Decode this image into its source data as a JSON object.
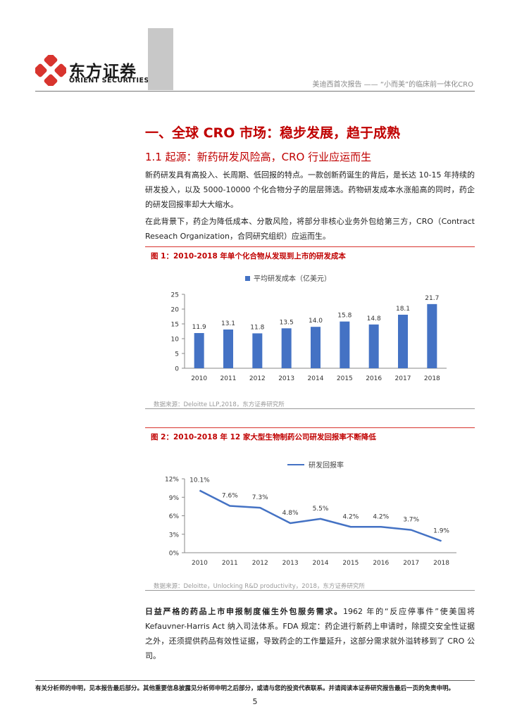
{
  "header": {
    "logo_cn": "东方证券",
    "logo_en": "ORIENT SECURITIES",
    "subtitle": "美迪西首次报告 —— “小而美”的临床前一体化CRO"
  },
  "section": {
    "title": "一、全球 CRO 市场：稳步发展，趋于成熟",
    "subtitle": "1.1 起源：新药研发风险高，CRO 行业应运而生"
  },
  "paragraphs": {
    "p1": "新药研发具有高投入、长周期、低回报的特点。一款创新药诞生的背后，是长达 10-15 年持续的研发投入，以及 5000-10000 个化合物分子的层层筛选。药物研发成本水涨船高的同时，药企的研发回报率却大大缩水。",
    "p2": "在此背景下，药企为降低成本、分散风险，将部分非核心业务外包给第三方，CRO（Contract Reseach Organization，合同研究组织）应运而生。",
    "p3_bold": "日益严格的药品上市申报制度催生外包服务需求。",
    "p3_rest": "1962 年的“反应停事件”使美国将 Kefauvner-Harris Act 纳入司法体系。FDA 规定：药企进行新药上申请时，除提交安全性证据之外，还须提供药品有效性证据，导致药企的工作量延升，这部分需求就外溢转移到了 CRO 公司。"
  },
  "figures": {
    "fig1_title": "图 1：2010-2018 年单个化合物从发现到上市的研发成本",
    "fig1_source": "数据来源：Deloitte LLP,2018，东方证券研究所",
    "fig2_title": "图 2：2010-2018 年 12 家大型生物制药公司研发回报率不断降低",
    "fig2_source": "数据来源：Deloitte，Unlocking R&D productivity，2018，东方证券研究所"
  },
  "chart_data": [
    {
      "type": "bar",
      "legend": "平均研发成本（亿美元）",
      "legend_position": "top-center",
      "categories": [
        "2010",
        "2011",
        "2012",
        "2013",
        "2014",
        "2015",
        "2016",
        "2017",
        "2018"
      ],
      "series": [
        {
          "name": "平均研发成本（亿美元）",
          "values": [
            11.9,
            13.1,
            11.8,
            13.5,
            14.0,
            15.8,
            14.8,
            18.1,
            21.7
          ]
        }
      ],
      "data_labels": [
        "11.9",
        "13.1",
        "11.8",
        "13.5",
        "14.0",
        "15.8",
        "14.8",
        "18.1",
        "21.7"
      ],
      "ylim": [
        0,
        25
      ],
      "yticks": [
        "0",
        "5",
        "10",
        "15",
        "20",
        "25"
      ],
      "color": "#4472c4",
      "grid": false
    },
    {
      "type": "line",
      "legend": "研发回报率",
      "legend_position": "top-center",
      "categories": [
        "2010",
        "2011",
        "2012",
        "2013",
        "2014",
        "2015",
        "2016",
        "2017",
        "2018"
      ],
      "series": [
        {
          "name": "研发回报率",
          "values": [
            10.1,
            7.6,
            7.3,
            4.8,
            5.5,
            4.2,
            4.2,
            3.7,
            1.9
          ]
        }
      ],
      "data_labels": [
        "10.1%",
        "7.6%",
        "7.3%",
        "4.8%",
        "5.5%",
        "4.2%",
        "4.2%",
        "3.7%",
        "1.9%"
      ],
      "ylim": [
        0,
        12
      ],
      "yticks": [
        "0%",
        "3%",
        "6%",
        "9%",
        "12%"
      ],
      "color": "#4472c4",
      "grid": false
    }
  ],
  "footer": {
    "disclaimer": "有关分析师的申明，见本报告最后部分。其他重要信息披露见分析师申明之后部分，或请与您的投资代表联系。并请阅读本证券研究报告最后一页的免责申明。",
    "page": "5"
  },
  "colors": {
    "accent_red": "#c00000",
    "bar_blue": "#4472c4",
    "logo_red": "#d8342e"
  }
}
